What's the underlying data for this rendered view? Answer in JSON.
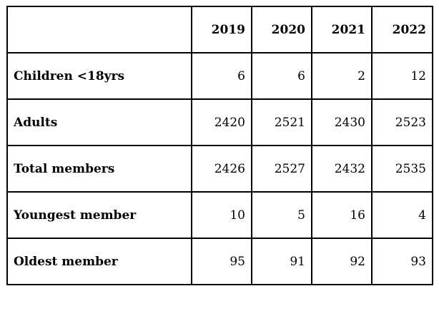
{
  "table": {
    "years": [
      "2019",
      "2020",
      "2021",
      "2022"
    ],
    "rows": [
      {
        "label": "Children <18yrs",
        "values": [
          "6",
          "6",
          "2",
          "12"
        ]
      },
      {
        "label": "Adults",
        "values": [
          "2420",
          "2521",
          "2430",
          "2523"
        ]
      },
      {
        "label": "Total members",
        "values": [
          "2426",
          "2527",
          "2432",
          "2535"
        ]
      },
      {
        "label": "Youngest member",
        "values": [
          "10",
          "5",
          "16",
          "4"
        ]
      },
      {
        "label": "Oldest member",
        "values": [
          "95",
          "91",
          "92",
          "93"
        ]
      }
    ]
  }
}
